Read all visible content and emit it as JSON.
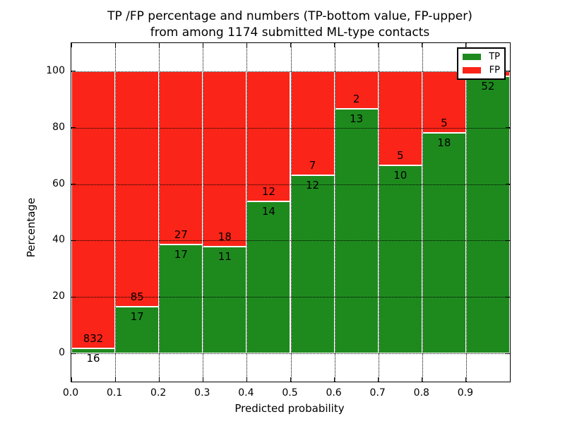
{
  "title": {
    "line1": "TP /FP percentage and numbers (TP-bottom value, FP-upper)",
    "line2": "from among 1174 submitted ML-type contacts"
  },
  "axes": {
    "ylabel": "Percentage",
    "xlabel": "Predicted probability",
    "yticks": [
      0,
      20,
      40,
      60,
      80,
      100
    ],
    "xticks": [
      "0.0",
      "0.1",
      "0.2",
      "0.3",
      "0.4",
      "0.5",
      "0.6",
      "0.7",
      "0.8",
      "0.9"
    ],
    "ylim": [
      -10,
      110
    ],
    "xlim": [
      0,
      1
    ]
  },
  "legend": {
    "items": [
      {
        "label": "TP",
        "color": "#1e8a1e"
      },
      {
        "label": "FP",
        "color": "#fa2418"
      }
    ]
  },
  "colors": {
    "tp": "#1e8a1e",
    "fp": "#fa2418",
    "grid": "#000000",
    "frame": "#000000",
    "background": "#ffffff"
  },
  "chart_data": {
    "type": "bar",
    "stacked": true,
    "title": "TP /FP percentage and numbers (TP-bottom value, FP-upper) from among 1174 submitted ML-type contacts",
    "xlabel": "Predicted probability",
    "ylabel": "Percentage",
    "ylim": [
      -10,
      110
    ],
    "xlim": [
      0,
      1
    ],
    "grid": true,
    "legend_position": "upper right",
    "categories": [
      "0.0-0.1",
      "0.1-0.2",
      "0.2-0.3",
      "0.3-0.4",
      "0.4-0.5",
      "0.5-0.6",
      "0.6-0.7",
      "0.7-0.8",
      "0.8-0.9",
      "0.9-1.0"
    ],
    "series": [
      {
        "name": "TP",
        "counts": [
          16,
          17,
          17,
          11,
          14,
          12,
          13,
          10,
          18,
          52
        ]
      },
      {
        "name": "FP",
        "counts": [
          832,
          85,
          27,
          18,
          12,
          7,
          2,
          5,
          5,
          null
        ]
      }
    ],
    "tp_percent": [
      1.89,
      16.67,
      38.64,
      37.93,
      53.85,
      63.16,
      86.67,
      66.67,
      78.26,
      98.11
    ],
    "total_submitted": 1174
  }
}
